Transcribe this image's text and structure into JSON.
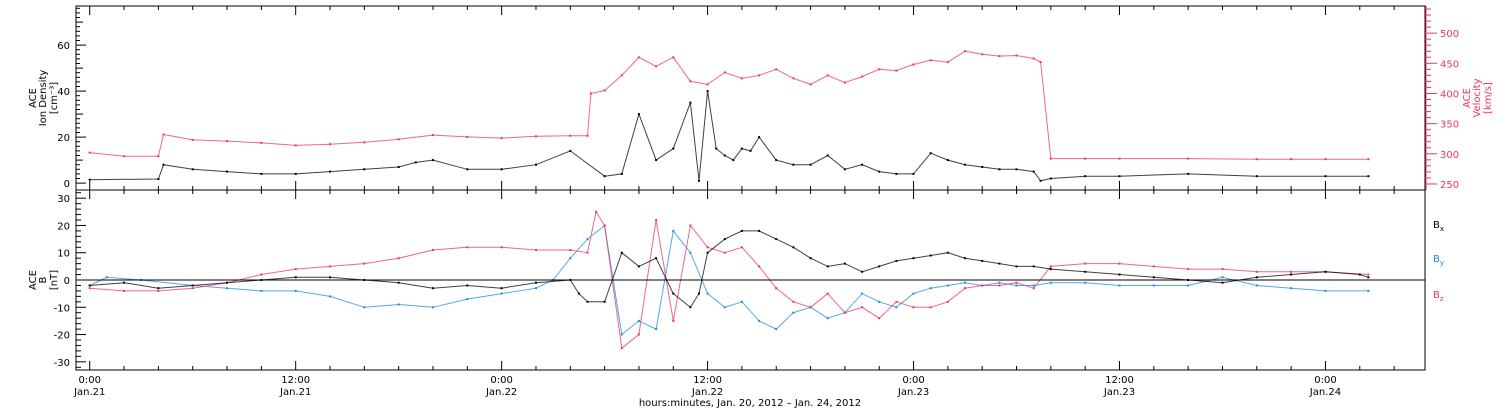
{
  "chart_data": [
    {
      "type": "scatter",
      "ylabel_lines": [
        "ACE",
        "Ion Density",
        "[cm⁻³]"
      ],
      "y2label_lines": [
        "ACE",
        "Velocity",
        "[km/s]"
      ],
      "y_ticks": [
        "0",
        "20",
        "40",
        "60"
      ],
      "y2_ticks": [
        "250",
        "300",
        "350",
        "400",
        "450",
        "500"
      ],
      "ylim": [
        -3,
        77
      ],
      "y2lim": [
        240,
        545
      ],
      "series": [
        {
          "axis": "left",
          "color": "#000000",
          "x": [
            0,
            4,
            4.3,
            6,
            8,
            10,
            12,
            14,
            16,
            18,
            19,
            20,
            22,
            24,
            26,
            28,
            30,
            31,
            32,
            33,
            34,
            35,
            35.5,
            36,
            36.5,
            37,
            37.5,
            38,
            38.5,
            39,
            40,
            41,
            42,
            43,
            44,
            45,
            46,
            47,
            48,
            49,
            50,
            51,
            52,
            53,
            54,
            55,
            55.4,
            56,
            58,
            60,
            64,
            68,
            72,
            74.5
          ],
          "y": [
            1.5,
            1.8,
            8,
            6,
            5,
            4,
            4,
            5,
            6,
            7,
            9,
            10,
            6,
            6,
            8,
            14,
            3,
            4,
            30,
            10,
            15,
            35,
            1,
            40,
            15,
            12,
            10,
            15,
            14,
            20,
            10,
            8,
            8,
            12,
            6,
            8,
            5,
            4,
            4,
            13,
            10,
            8,
            7,
            6,
            6,
            5,
            1,
            2,
            3,
            3,
            4,
            3,
            3,
            3
          ]
        },
        {
          "axis": "right",
          "color": "#ee3366",
          "x": [
            0,
            2,
            4,
            4.3,
            6,
            8,
            10,
            12,
            14,
            16,
            18,
            20,
            22,
            24,
            26,
            28,
            29,
            29.2,
            30,
            31,
            32,
            33,
            34,
            35,
            36,
            37,
            38,
            39,
            40,
            41,
            42,
            43,
            44,
            45,
            46,
            47,
            48,
            49,
            50,
            51,
            52,
            53,
            54,
            55,
            55.4,
            56,
            58,
            60,
            64,
            68,
            70,
            72,
            74.5
          ],
          "y": [
            302,
            296,
            296,
            332,
            323,
            321,
            318,
            314,
            316,
            319,
            324,
            331,
            328,
            326,
            329,
            330,
            330,
            400,
            405,
            430,
            460,
            445,
            460,
            420,
            415,
            435,
            425,
            430,
            440,
            425,
            415,
            430,
            418,
            428,
            440,
            438,
            448,
            455,
            452,
            470,
            465,
            462,
            463,
            458,
            452,
            292,
            292,
            292,
            292,
            291,
            291,
            291,
            291
          ]
        }
      ]
    },
    {
      "type": "scatter",
      "ylabel_lines": [
        "ACE",
        "B",
        "[nT]"
      ],
      "y_ticks": [
        "-30",
        "-20",
        "-10",
        "0",
        "10",
        "20",
        "30"
      ],
      "ylim": [
        -33,
        33
      ],
      "series": [
        {
          "name": "B",
          "name_sub": "x",
          "color": "#000000",
          "x": [
            0,
            2,
            4,
            6,
            8,
            10,
            12,
            14,
            16,
            18,
            20,
            22,
            24,
            26,
            28,
            28.5,
            29,
            30,
            31,
            32,
            33,
            34,
            35,
            35.5,
            36,
            37,
            38,
            39,
            40,
            41,
            42,
            43,
            44,
            45,
            46,
            47,
            48,
            49,
            50,
            51,
            52,
            53,
            54,
            55,
            56,
            58,
            60,
            62,
            64,
            66,
            68,
            70,
            72,
            74,
            74.5
          ],
          "y": [
            -2,
            -1,
            -3,
            -2,
            -1,
            0,
            1,
            1,
            0,
            -1,
            -3,
            -2,
            -3,
            -1,
            0,
            -5,
            -8,
            -8,
            10,
            5,
            8,
            -5,
            -10,
            -5,
            10,
            15,
            18,
            18,
            15,
            12,
            8,
            5,
            6,
            3,
            5,
            7,
            8,
            9,
            10,
            8,
            7,
            6,
            5,
            5,
            4,
            3,
            2,
            1,
            0,
            -1,
            1,
            2,
            3,
            2,
            1
          ]
        },
        {
          "name": "B",
          "name_sub": "y",
          "color": "#1a8ee0",
          "x": [
            0,
            1,
            3,
            6,
            8,
            10,
            12,
            14,
            16,
            18,
            20,
            22,
            24,
            26,
            27,
            28,
            29,
            30,
            31,
            32,
            33,
            34,
            35,
            36,
            37,
            38,
            39,
            40,
            41,
            42,
            43,
            44,
            45,
            46,
            47,
            48,
            49,
            50,
            51,
            52,
            53,
            54,
            55,
            56,
            58,
            60,
            62,
            64,
            66,
            68,
            70,
            72,
            74.5
          ],
          "y": [
            -2,
            1,
            0,
            -2,
            -3,
            -4,
            -4,
            -6,
            -10,
            -9,
            -10,
            -7,
            -5,
            -3,
            0,
            8,
            15,
            20,
            -20,
            -15,
            -18,
            18,
            10,
            -5,
            -10,
            -8,
            -15,
            -18,
            -12,
            -10,
            -14,
            -12,
            -5,
            -8,
            -10,
            -5,
            -3,
            -2,
            -1,
            -2,
            -1,
            -2,
            -2,
            -1,
            -1,
            -2,
            -2,
            -2,
            1,
            -2,
            -3,
            -4,
            -4
          ]
        },
        {
          "name": "B",
          "name_sub": "z",
          "color": "#ee3366",
          "x": [
            0,
            2,
            4,
            6,
            8,
            10,
            12,
            14,
            16,
            18,
            20,
            22,
            24,
            26,
            28,
            29,
            29.5,
            30,
            31,
            32,
            33,
            34,
            35,
            36,
            37,
            38,
            39,
            40,
            41,
            42,
            43,
            44,
            45,
            46,
            47,
            48,
            49,
            50,
            51,
            52,
            53,
            54,
            55,
            56,
            58,
            60,
            62,
            64,
            66,
            68,
            70,
            72,
            74.5
          ],
          "y": [
            -3,
            -4,
            -4,
            -3,
            -1,
            2,
            4,
            5,
            6,
            8,
            11,
            12,
            12,
            11,
            11,
            10,
            25,
            20,
            -25,
            -20,
            22,
            -15,
            20,
            12,
            10,
            12,
            5,
            -3,
            -8,
            -10,
            -5,
            -12,
            -10,
            -14,
            -8,
            -10,
            -10,
            -8,
            -3,
            -2,
            -2,
            -1,
            -3,
            5,
            6,
            6,
            5,
            4,
            4,
            3,
            3,
            3,
            2
          ]
        }
      ]
    }
  ],
  "x_axis": {
    "ticks": [
      {
        "hours": 0,
        "time": "0:00",
        "date": "Jan.21"
      },
      {
        "hours": 12,
        "time": "12:00",
        "date": "Jan.21"
      },
      {
        "hours": 24,
        "time": "0:00",
        "date": "Jan.22"
      },
      {
        "hours": 36,
        "time": "12:00",
        "date": "Jan.22"
      },
      {
        "hours": 48,
        "time": "0:00",
        "date": "Jan.23"
      },
      {
        "hours": 60,
        "time": "12:00",
        "date": "Jan.23"
      },
      {
        "hours": 72,
        "time": "0:00",
        "date": "Jan.24"
      }
    ],
    "xlim": [
      -0.8,
      77.8
    ],
    "label": "hours:minutes, Jan. 20, 2012 – Jan. 24, 2012"
  },
  "legend": {
    "bx": "B",
    "bx_sub": "x",
    "by": "B",
    "by_sub": "y",
    "bz": "B",
    "bz_sub": "z"
  },
  "colors": {
    "black": "#000000",
    "pink": "#ee3366",
    "blue": "#1a8ee0"
  }
}
